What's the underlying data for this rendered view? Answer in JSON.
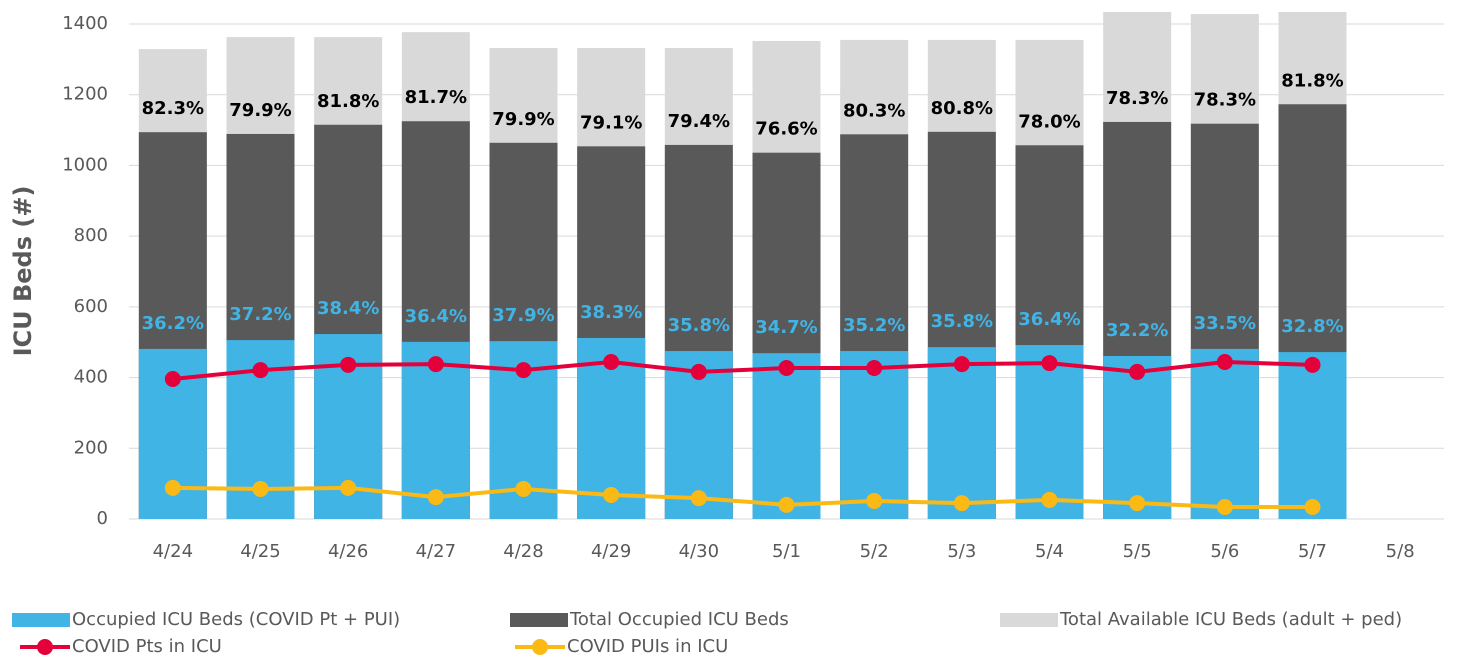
{
  "chart_data": {
    "type": "bar",
    "y_label": "ICU Beds (#)",
    "categories": [
      "4/24",
      "4/25",
      "4/26",
      "4/27",
      "4/28",
      "4/29",
      "4/30",
      "5/1",
      "5/2",
      "5/3",
      "5/4",
      "5/5",
      "5/6",
      "5/7",
      "5/8"
    ],
    "series": [
      {
        "name": "Total Available ICU Beds (adult + ped)",
        "color": "#d9d9d9",
        "kind": "bar",
        "values": [
          1329,
          1363,
          1363,
          1377,
          1332,
          1332,
          1332,
          1352,
          1355,
          1355,
          1355,
          1434,
          1428,
          1434,
          null
        ]
      },
      {
        "name": "Total Occupied ICU Beds",
        "color": "#595959",
        "kind": "bar",
        "values": [
          1094,
          1089,
          1115,
          1125,
          1064,
          1054,
          1058,
          1036,
          1088,
          1095,
          1057,
          1123,
          1118,
          1173,
          null
        ]
      },
      {
        "name": "Occupied ICU Beds (COVID Pt + PUI)",
        "color": "#41b4e6",
        "kind": "bar",
        "values": [
          481,
          506,
          523,
          501,
          503,
          512,
          475,
          469,
          475,
          486,
          492,
          461,
          481,
          472,
          null
        ]
      },
      {
        "name": "COVID Pts in ICU",
        "color": "#e4003b",
        "kind": "line",
        "values": [
          396,
          421,
          436,
          438,
          421,
          444,
          416,
          427,
          427,
          438,
          441,
          416,
          444,
          436,
          null
        ]
      },
      {
        "name": "COVID PUIs in ICU",
        "color": "#fbb916",
        "kind": "line",
        "values": [
          88,
          85,
          88,
          62,
          85,
          68,
          59,
          40,
          51,
          45,
          54,
          45,
          34,
          34,
          null
        ]
      }
    ],
    "occupancy_labels": [
      "82.3%",
      "79.9%",
      "81.8%",
      "81.7%",
      "79.9%",
      "79.1%",
      "79.4%",
      "76.6%",
      "80.3%",
      "80.8%",
      "78.0%",
      "78.3%",
      "78.3%",
      "81.8%",
      null
    ],
    "covid_labels": [
      "36.2%",
      "37.2%",
      "38.4%",
      "36.4%",
      "37.9%",
      "38.3%",
      "35.8%",
      "34.7%",
      "35.2%",
      "35.8%",
      "36.4%",
      "32.2%",
      "33.5%",
      "32.8%",
      null
    ],
    "ylim": [
      0,
      1400
    ],
    "yticks": [
      0,
      200,
      400,
      600,
      800,
      1000,
      1200,
      1400
    ],
    "grid": true
  }
}
